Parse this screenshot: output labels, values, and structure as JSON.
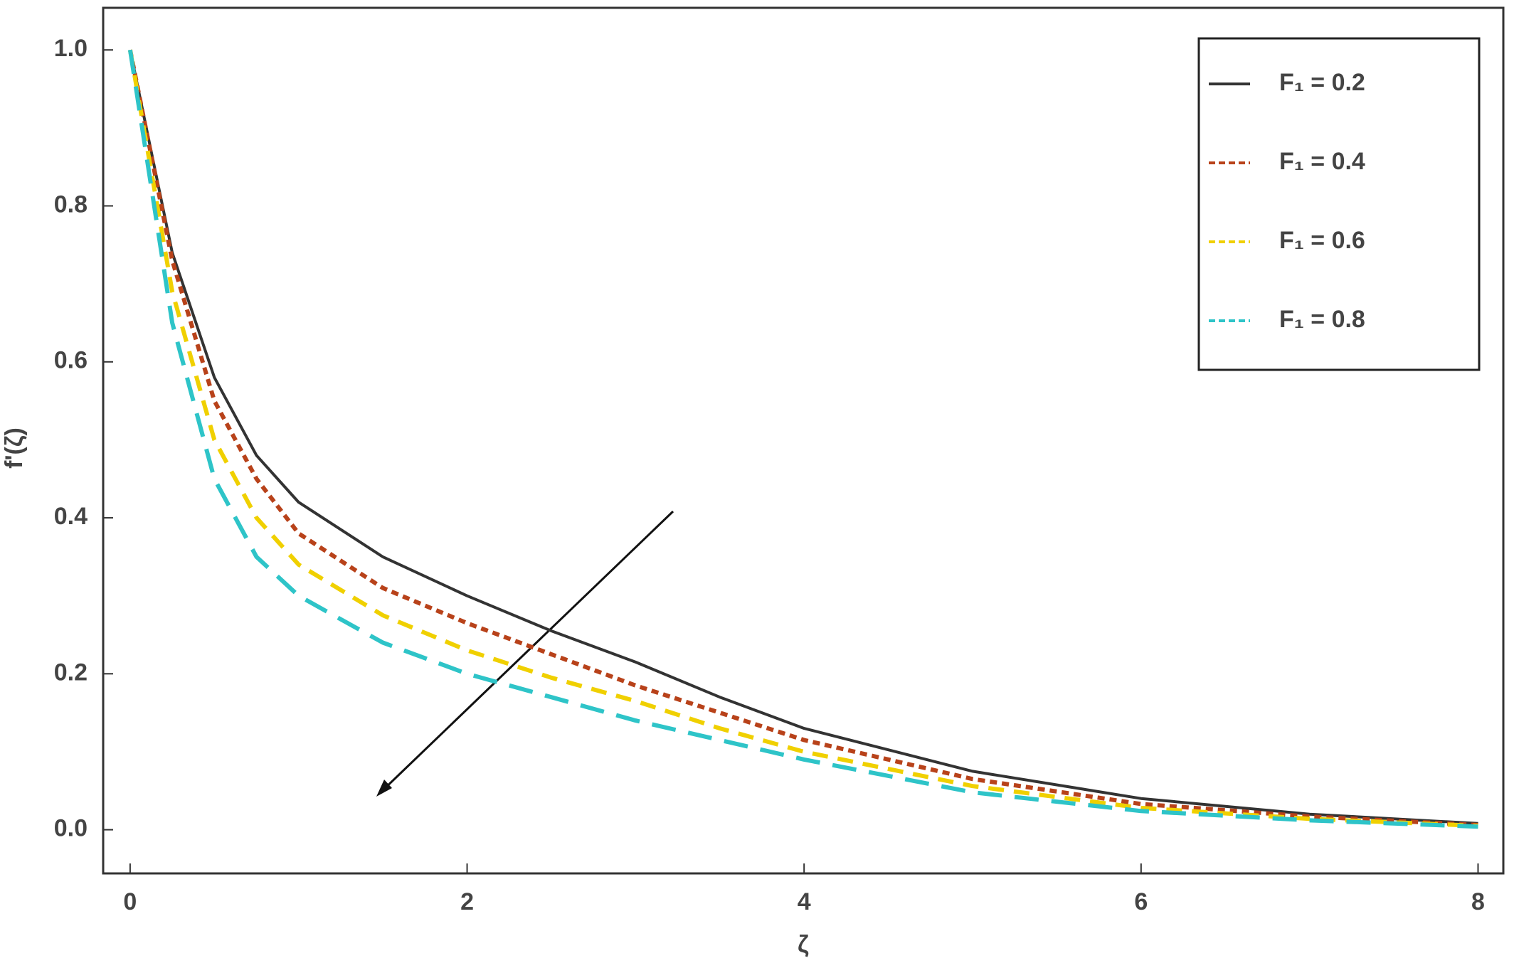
{
  "chart_data": {
    "type": "line",
    "xlabel": "ζ",
    "ylabel": "f'(ζ)",
    "x": [
      0,
      0.25,
      0.5,
      0.75,
      1,
      1.5,
      2,
      2.5,
      3,
      3.5,
      4,
      5,
      6,
      7,
      8
    ],
    "series": [
      {
        "name": "F₁ = 0.2",
        "color": "#333333",
        "dash": "solid",
        "values": [
          1.0,
          0.74,
          0.58,
          0.48,
          0.42,
          0.35,
          0.3,
          0.255,
          0.215,
          0.17,
          0.13,
          0.075,
          0.04,
          0.02,
          0.008
        ]
      },
      {
        "name": "F₁ = 0.4",
        "color": "#b8421a",
        "dash": "short",
        "values": [
          1.0,
          0.73,
          0.55,
          0.45,
          0.38,
          0.31,
          0.265,
          0.225,
          0.185,
          0.15,
          0.115,
          0.065,
          0.033,
          0.017,
          0.006
        ]
      },
      {
        "name": "F₁ = 0.6",
        "color": "#f0d000",
        "dash": "medium",
        "values": [
          1.0,
          0.69,
          0.5,
          0.4,
          0.34,
          0.275,
          0.23,
          0.195,
          0.165,
          0.13,
          0.1,
          0.056,
          0.028,
          0.014,
          0.005
        ]
      },
      {
        "name": "F₁ = 0.8",
        "color": "#2ec4c8",
        "dash": "long",
        "values": [
          1.0,
          0.65,
          0.45,
          0.35,
          0.3,
          0.24,
          0.2,
          0.17,
          0.14,
          0.115,
          0.09,
          0.048,
          0.024,
          0.012,
          0.004
        ]
      }
    ],
    "xlim": [
      -0.16,
      8.15
    ],
    "ylim": [
      -0.056,
      1.054
    ],
    "xticks": [
      0,
      2,
      4,
      6,
      8
    ],
    "yticks": [
      {
        "value": 0,
        "label": "0.0"
      },
      0.2,
      0.4,
      0.6,
      0.8,
      {
        "value": 1,
        "label": "1.0"
      }
    ],
    "legend": "upper right",
    "grid": false
  }
}
